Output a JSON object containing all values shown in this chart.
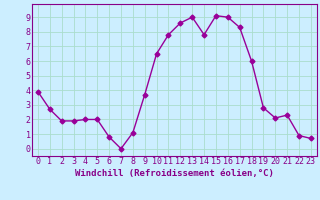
{
  "x": [
    0,
    1,
    2,
    3,
    4,
    5,
    6,
    7,
    8,
    9,
    10,
    11,
    12,
    13,
    14,
    15,
    16,
    17,
    18,
    19,
    20,
    21,
    22,
    23
  ],
  "y": [
    3.9,
    2.7,
    1.9,
    1.9,
    2.0,
    2.0,
    0.8,
    0.0,
    1.1,
    3.7,
    6.5,
    7.8,
    8.6,
    9.0,
    7.8,
    9.1,
    9.0,
    8.3,
    6.0,
    2.8,
    2.1,
    2.3,
    0.9,
    0.7
  ],
  "line_color": "#990099",
  "marker": "D",
  "markersize": 2.5,
  "xlabel": "Windchill (Refroidissement éolien,°C)",
  "xlabel_fontsize": 6.5,
  "bg_color": "#cceeff",
  "grid_color": "#aaddcc",
  "tick_color": "#880088",
  "label_color": "#880088",
  "xlim": [
    -0.5,
    23.5
  ],
  "ylim": [
    -0.5,
    9.9
  ],
  "yticks": [
    0,
    1,
    2,
    3,
    4,
    5,
    6,
    7,
    8,
    9
  ],
  "xticks": [
    0,
    1,
    2,
    3,
    4,
    5,
    6,
    7,
    8,
    9,
    10,
    11,
    12,
    13,
    14,
    15,
    16,
    17,
    18,
    19,
    20,
    21,
    22,
    23
  ],
  "tick_fontsize": 6.0,
  "linewidth": 1.0
}
